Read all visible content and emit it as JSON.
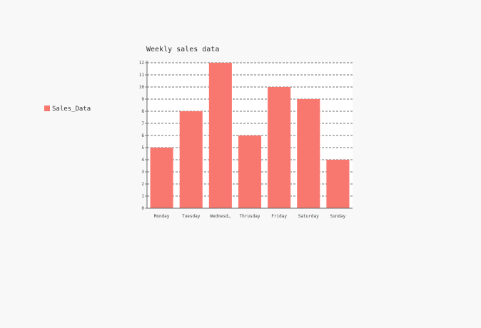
{
  "chart_data": {
    "type": "bar",
    "title": "Weekly sales data",
    "categories": [
      "Monday",
      "Tuesday",
      "Wednesd…",
      "Thrusday",
      "Friday",
      "Saturday",
      "Sunday"
    ],
    "series": [
      {
        "name": "Sales_Data",
        "values": [
          5,
          8,
          12,
          6,
          10,
          9,
          4
        ]
      }
    ],
    "ylim": [
      0,
      12
    ],
    "yticks": [
      "0",
      "1",
      "2",
      "3",
      "4",
      "5",
      "6",
      "7",
      "8",
      "9",
      "10",
      "11",
      "12"
    ],
    "grid": true,
    "legend_position": "left",
    "colors": {
      "bar": "#f8786f",
      "background": "#f8f8f8",
      "plot_background": "#ffffff",
      "grid": "#444444",
      "axis": "#666666"
    }
  }
}
